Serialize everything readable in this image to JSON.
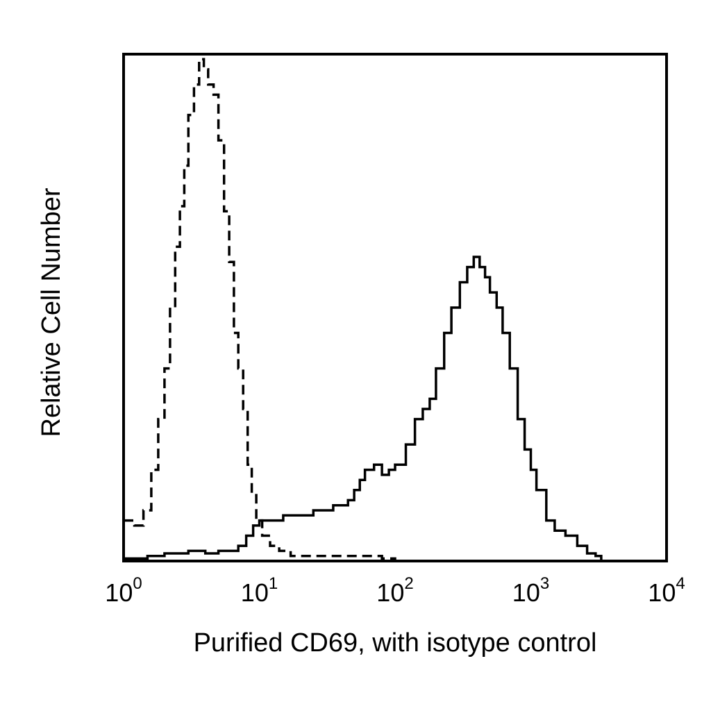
{
  "chart_data": {
    "type": "line",
    "title": "",
    "xlabel": "Purified CD69, with isotype control",
    "ylabel": "Relative Cell Number",
    "x_scale": "log",
    "xlim": [
      1,
      10000
    ],
    "ylim": [
      0,
      100
    ],
    "grid": false,
    "legend": "none",
    "x_ticks": [
      {
        "base": "10",
        "exp": "0"
      },
      {
        "base": "10",
        "exp": "1"
      },
      {
        "base": "10",
        "exp": "2"
      },
      {
        "base": "10",
        "exp": "3"
      },
      {
        "base": "10",
        "exp": "4"
      }
    ],
    "series": [
      {
        "style": "dashed",
        "color": "#000000",
        "x": [
          1.0,
          1.2,
          1.4,
          1.6,
          1.8,
          2.0,
          2.2,
          2.4,
          2.6,
          2.8,
          3.0,
          3.3,
          3.6,
          3.9,
          4.2,
          4.6,
          5.0,
          5.5,
          6.0,
          6.5,
          7.0,
          7.6,
          8.2,
          8.8,
          9.5,
          10.5,
          12,
          14,
          17,
          20,
          25,
          30,
          35,
          40,
          45,
          50,
          60,
          70,
          80,
          100
        ],
        "y": [
          8,
          7,
          10,
          18,
          28,
          38,
          50,
          62,
          70,
          78,
          88,
          94,
          99,
          97,
          94,
          92,
          83,
          69,
          59,
          45,
          38,
          30,
          19,
          13,
          8,
          5,
          3,
          2,
          1,
          1,
          1,
          1,
          1,
          1,
          1,
          1,
          1,
          1,
          0.5,
          0
        ]
      },
      {
        "style": "solid",
        "color": "#000000",
        "x": [
          1.0,
          1.5,
          2.0,
          3.0,
          4.0,
          5.0,
          6.0,
          7.0,
          8.0,
          9.0,
          10,
          12,
          15,
          20,
          25,
          30,
          35,
          40,
          45,
          50,
          55,
          60,
          70,
          80,
          90,
          100,
          120,
          140,
          160,
          180,
          200,
          230,
          260,
          300,
          340,
          380,
          420,
          460,
          500,
          560,
          620,
          700,
          800,
          900,
          1000,
          1100,
          1300,
          1500,
          1800,
          2200,
          2600,
          3000,
          3300
        ],
        "y": [
          0.5,
          1,
          1.5,
          2,
          1.5,
          2,
          2,
          3,
          5,
          7,
          8,
          8,
          9,
          9,
          10,
          10,
          11,
          11,
          12,
          14,
          16,
          18,
          19,
          17,
          18,
          19,
          23,
          28,
          30,
          32,
          38,
          45,
          50,
          55,
          58,
          60,
          58,
          56,
          53,
          50,
          45,
          38,
          28,
          22,
          18,
          14,
          8,
          6,
          5,
          3,
          1.5,
          1,
          0
        ]
      }
    ]
  }
}
